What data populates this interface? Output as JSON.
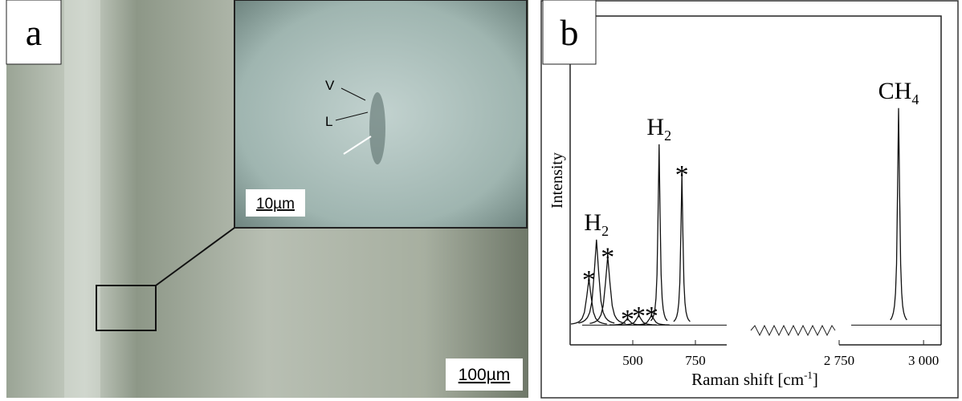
{
  "panel_a": {
    "label": "a",
    "inset": {
      "marker_v": "V",
      "marker_l": "L",
      "scale": "10µm"
    },
    "scale": "100µm"
  },
  "panel_b": {
    "label": "b",
    "type": "spectrum",
    "y_label": "Intensity",
    "x_label": "Raman shift [cm",
    "x_label_sup": "-1",
    "x_label_end": "]",
    "ylim": [
      0,
      100
    ],
    "baseline": 6,
    "segments": [
      {
        "xlim": [
          250,
          875
        ],
        "xticks": [
          500,
          750
        ]
      },
      {
        "xlim": [
          2750,
          3052
        ],
        "xticks": [
          {
            "value": 2750,
            "label": "2 750"
          },
          {
            "value": 3000,
            "label": "3 000"
          }
        ]
      }
    ],
    "peaks": [
      {
        "segment": 0,
        "x": 325,
        "y": 20,
        "label": "*"
      },
      {
        "segment": 0,
        "x": 355,
        "y": 32,
        "label": {
          "text": "H",
          "sub": "2"
        }
      },
      {
        "segment": 0,
        "x": 400,
        "y": 27,
        "label": "*"
      },
      {
        "segment": 0,
        "x": 479,
        "y": 8,
        "label": "*"
      },
      {
        "segment": 0,
        "x": 524,
        "y": 9,
        "label": "*"
      },
      {
        "segment": 0,
        "x": 575,
        "y": 9,
        "label": "*"
      },
      {
        "segment": 0,
        "x": 605,
        "y": 61,
        "label": {
          "text": "H",
          "sub": "2"
        }
      },
      {
        "segment": 0,
        "x": 696,
        "y": 52,
        "label": "*"
      },
      {
        "segment": 1,
        "x": 2926,
        "y": 72,
        "label": {
          "text": "CH",
          "sub": "4"
        }
      }
    ]
  }
}
